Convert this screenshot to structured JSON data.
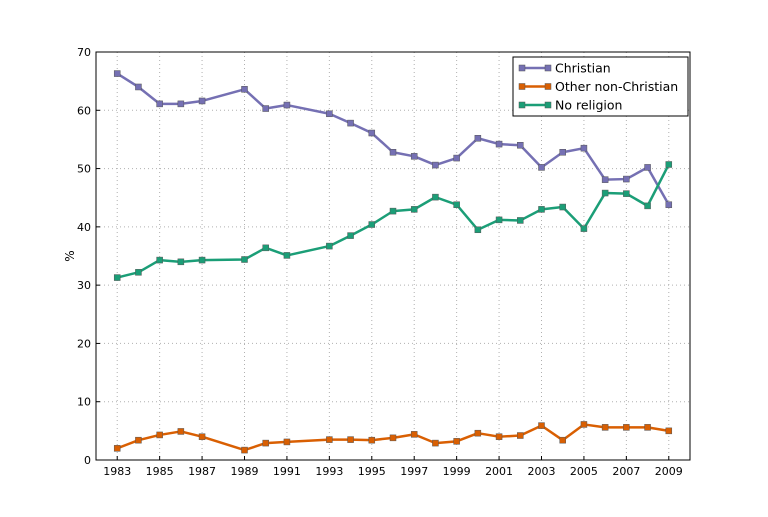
{
  "chart_data": {
    "type": "line",
    "title": "",
    "xlabel": "",
    "ylabel": "%",
    "xlim": [
      1982,
      2010
    ],
    "ylim": [
      0,
      70
    ],
    "xticks": [
      1983,
      1985,
      1987,
      1989,
      1991,
      1993,
      1995,
      1997,
      1999,
      2001,
      2003,
      2005,
      2007,
      2009
    ],
    "yticks": [
      0,
      10,
      20,
      30,
      40,
      50,
      60,
      70
    ],
    "grid": true,
    "legend_position": "top-right",
    "marker": "square",
    "x": [
      1983,
      1984,
      1985,
      1986,
      1987,
      1989,
      1990,
      1991,
      1993,
      1994,
      1995,
      1996,
      1997,
      1998,
      1999,
      2000,
      2001,
      2002,
      2003,
      2004,
      2005,
      2006,
      2007,
      2008,
      2009
    ],
    "series": [
      {
        "name": "Christian",
        "color": "#7570b3",
        "values": [
          66.3,
          64.0,
          61.1,
          61.1,
          61.6,
          63.6,
          60.3,
          60.9,
          59.4,
          57.8,
          56.1,
          52.8,
          52.1,
          50.6,
          51.8,
          55.2,
          54.2,
          54.0,
          50.2,
          52.8,
          53.5,
          48.1,
          48.2,
          50.2,
          43.8
        ]
      },
      {
        "name": "Other non-Christian",
        "color": "#d95f02",
        "values": [
          2.0,
          3.4,
          4.3,
          4.9,
          4.0,
          1.7,
          2.9,
          3.1,
          3.5,
          3.5,
          3.4,
          3.8,
          4.4,
          2.9,
          3.2,
          4.6,
          4.0,
          4.2,
          5.9,
          3.4,
          6.1,
          5.6,
          5.6,
          5.6,
          5.0
        ]
      },
      {
        "name": "No religion",
        "color": "#1b9e77",
        "values": [
          31.3,
          32.2,
          34.3,
          34.0,
          34.3,
          34.4,
          36.4,
          35.1,
          36.7,
          38.5,
          40.4,
          42.7,
          43.0,
          45.1,
          43.8,
          39.5,
          41.2,
          41.1,
          43.0,
          43.4,
          39.7,
          45.8,
          45.7,
          43.6,
          50.7
        ]
      }
    ]
  }
}
